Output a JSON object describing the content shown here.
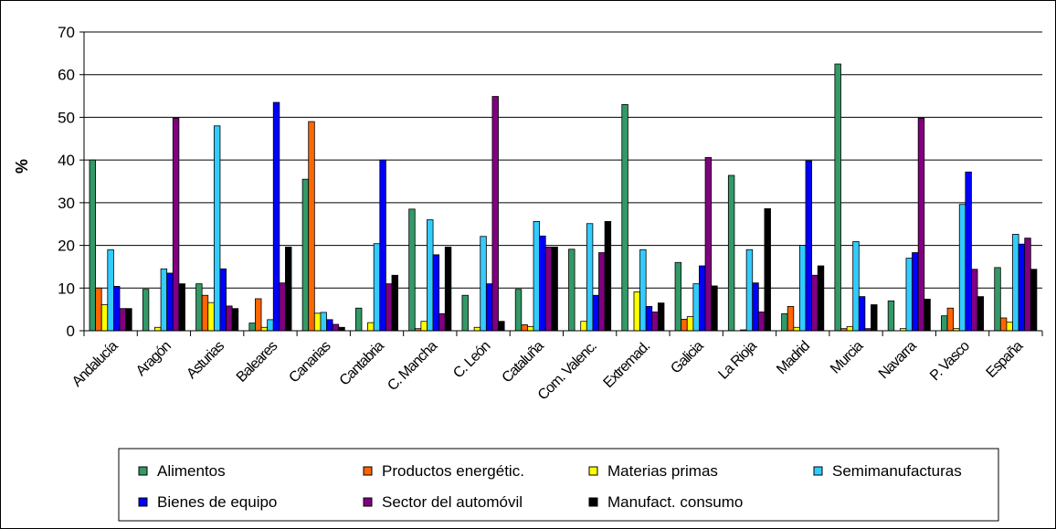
{
  "chart_data": {
    "type": "bar",
    "ylabel": "%",
    "xlabel": "",
    "title": "",
    "ylim": [
      0,
      70
    ],
    "yticks": [
      0,
      10,
      20,
      30,
      40,
      50,
      60,
      70
    ],
    "grid": true,
    "legend_position": "bottom",
    "categories": [
      "Andalucía",
      "Aragón",
      "Asturias",
      "Baleares",
      "Canarias",
      "Cantabria",
      "C. Mancha",
      "C. León",
      "Cataluña",
      "Com. Valenc.",
      "Extremad.",
      "Galicia",
      "La Rioja",
      "Madrid",
      "Murcia",
      "Navarra",
      "P. Vasco",
      "España"
    ],
    "series": [
      {
        "name": "Alimentos",
        "color": "#339966",
        "values": [
          40,
          9.7,
          11,
          1.8,
          35.5,
          5.3,
          28.5,
          8.3,
          9.7,
          19.1,
          53,
          16,
          36.4,
          4,
          62.5,
          7,
          3.5,
          14.8
        ]
      },
      {
        "name": "Productos energétic.",
        "color": "#FF6600",
        "values": [
          10,
          0,
          8.3,
          7.5,
          49,
          0,
          0.5,
          0,
          1.4,
          0,
          0,
          2.7,
          0,
          5.7,
          0.5,
          0,
          5.3,
          3
        ]
      },
      {
        "name": "Materias primas",
        "color": "#FFFF00",
        "values": [
          6.1,
          0.8,
          6.6,
          0.8,
          4.1,
          1.9,
          2.2,
          0.8,
          1,
          2.2,
          9.1,
          3.3,
          0.2,
          0.8,
          1,
          0.5,
          0.5,
          2
        ]
      },
      {
        "name": "Semimanufacturas",
        "color": "#33CCFF",
        "values": [
          19,
          14.5,
          48,
          2.6,
          4.3,
          20.4,
          26,
          22.1,
          25.6,
          25.1,
          19,
          11,
          19,
          20,
          20.9,
          17,
          29.6,
          22.6
        ]
      },
      {
        "name": "Bienes de equipo",
        "color": "#0000FF",
        "values": [
          10.4,
          13.5,
          14.5,
          53.5,
          2.6,
          40,
          17.8,
          11,
          22.2,
          8.3,
          5.7,
          15.2,
          11.2,
          39.8,
          8,
          18.3,
          37.2,
          20.3
        ]
      },
      {
        "name": "Sector del automóvil",
        "color": "#800080",
        "values": [
          5.2,
          49.8,
          5.8,
          11.2,
          1.5,
          11,
          4,
          54.9,
          19.6,
          18.3,
          4.4,
          40.6,
          4.4,
          13,
          0.5,
          49.8,
          14.4,
          21.7
        ]
      },
      {
        "name": "Manufact. consumo",
        "color": "#000000",
        "values": [
          5.2,
          11,
          5.2,
          19.6,
          0.8,
          13,
          19.6,
          2.2,
          19.6,
          25.6,
          6.5,
          10.5,
          28.6,
          15.2,
          6.1,
          7.4,
          8,
          14.4
        ]
      }
    ]
  }
}
